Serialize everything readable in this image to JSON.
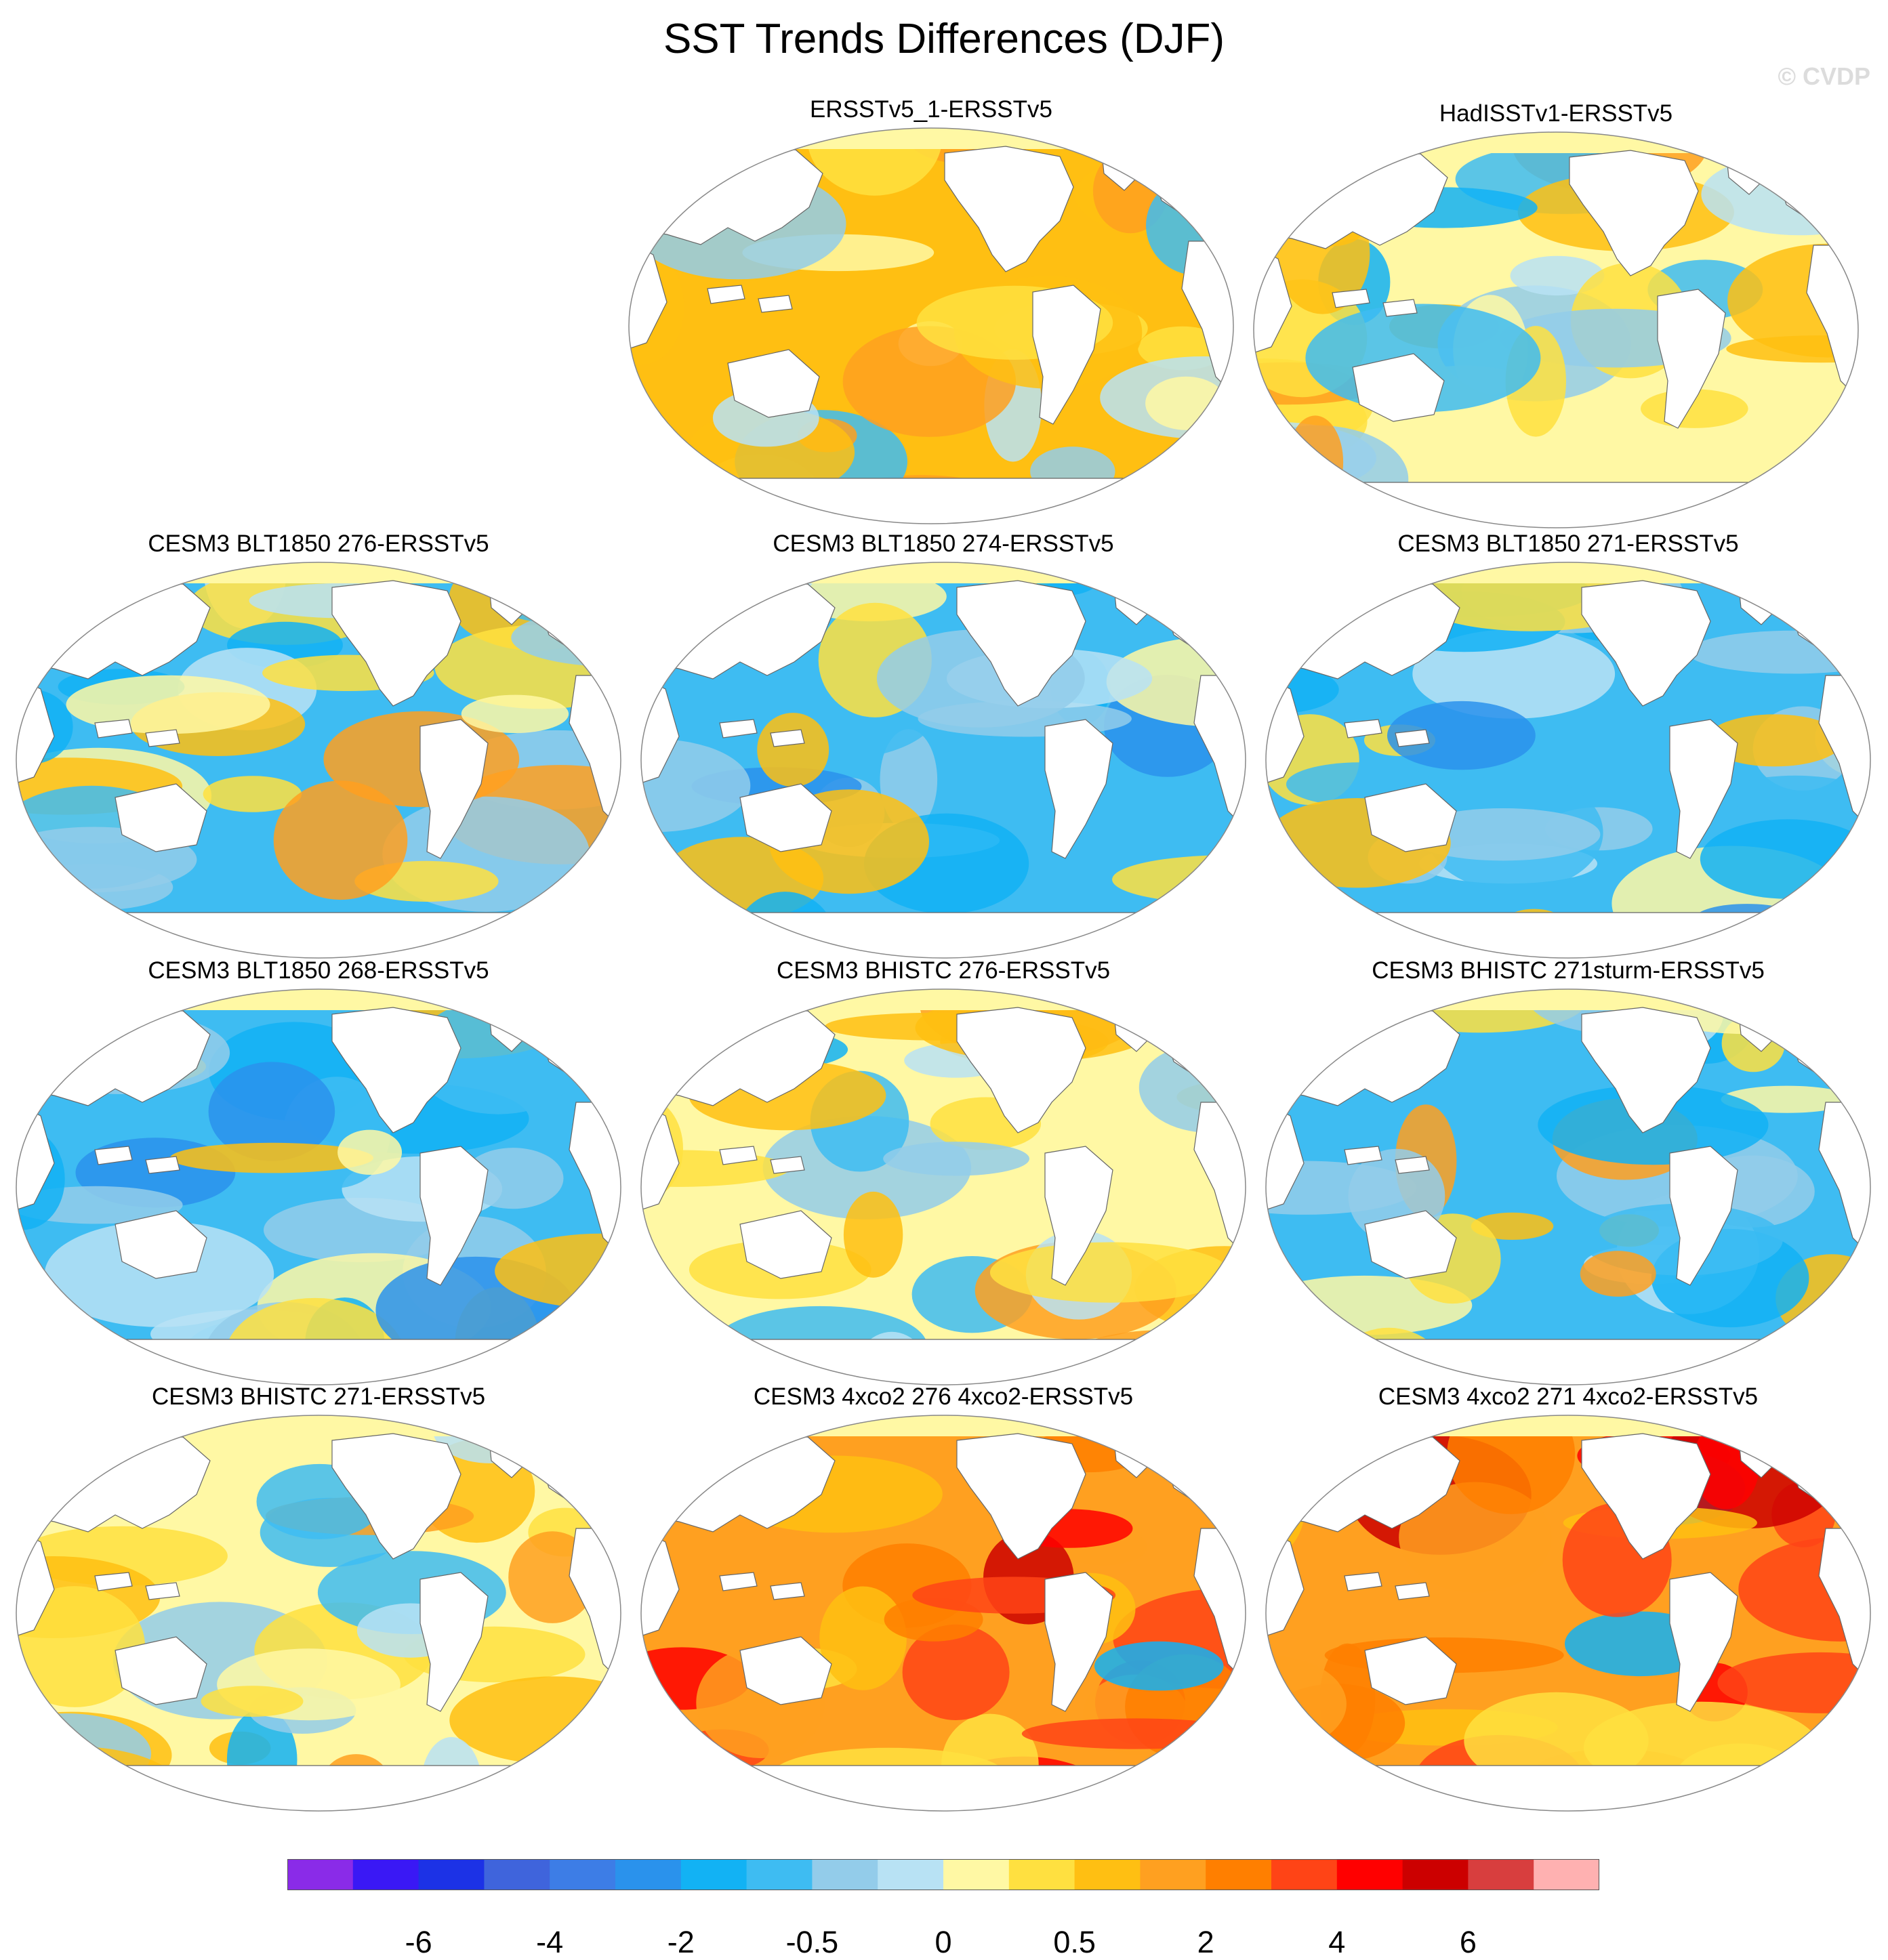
{
  "title": "SST Trends Differences (DJF)",
  "watermark": "© CVDP",
  "panels": [
    {
      "label": "ERSSTv5_1-ERSSTv5",
      "palette": "warm-mixed"
    },
    {
      "label": "HadISSTv1-ERSSTv5",
      "palette": "mixed"
    },
    {
      "label": "CESM3 BLT1850 276-ERSSTv5",
      "palette": "cool-mixed"
    },
    {
      "label": "CESM3 BLT1850 274-ERSSTv5",
      "palette": "cool"
    },
    {
      "label": "CESM3 BLT1850 271-ERSSTv5",
      "palette": "cool"
    },
    {
      "label": "CESM3 BLT1850 268-ERSSTv5",
      "palette": "cool"
    },
    {
      "label": "CESM3 BHISTC 276-ERSSTv5",
      "palette": "mixed"
    },
    {
      "label": "CESM3 BHISTC 271sturm-ERSSTv5",
      "palette": "cool-mixed"
    },
    {
      "label": "CESM3 BHISTC 271-ERSSTv5",
      "palette": "mixed"
    },
    {
      "label": "CESM3 4xco2 276 4xco2-ERSSTv5",
      "palette": "hot"
    },
    {
      "label": "CESM3 4xco2 271 4xco2-ERSSTv5",
      "palette": "hot"
    }
  ],
  "colorbar": {
    "colors": [
      "#8a2be8",
      "#3a18f5",
      "#1c32e6",
      "#3f64dc",
      "#3d7de6",
      "#2a92ec",
      "#12b2f4",
      "#3ebcf2",
      "#93ccea",
      "#b8e2f4",
      "#fff8a4",
      "#ffe040",
      "#ffbf12",
      "#ffa020",
      "#ff7f00",
      "#ff4416",
      "#ff0000",
      "#cc0000",
      "#d83e3e",
      "#ffb1b1"
    ],
    "labels": [
      "-6",
      "-4",
      "-2",
      "-0.5",
      "0",
      "0.5",
      "2",
      "4",
      "6"
    ]
  }
}
